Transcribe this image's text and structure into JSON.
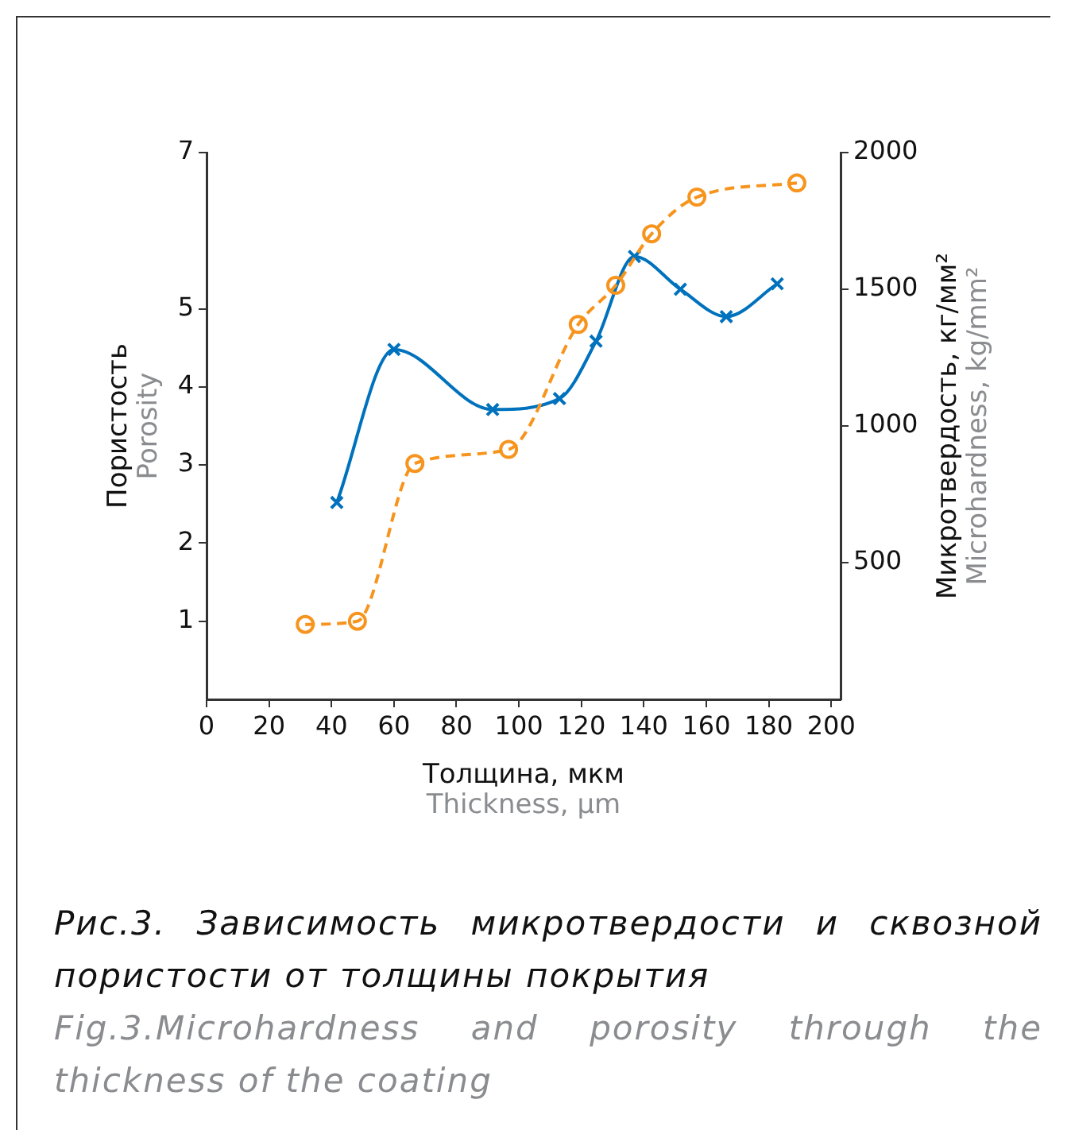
{
  "chart_data": {
    "type": "line",
    "xlabel": "Толщина, мкм\nThickness, µm",
    "ylabel": "Пористость\nPorosity",
    "y2label": "Микротвердость, кг/мм²\nMicrohardness, kg/mm²",
    "xlim": [
      0,
      203
    ],
    "xticks": [
      0,
      20,
      40,
      60,
      80,
      100,
      120,
      140,
      160,
      180,
      200
    ],
    "ylim": [
      0,
      7
    ],
    "yticks": [
      1,
      2,
      3,
      4,
      5,
      7
    ],
    "y2lim": [
      0,
      2000
    ],
    "y2ticks": [
      500,
      1000,
      1500,
      2000
    ],
    "grid": false,
    "legend": false,
    "series": [
      {
        "type": "line",
        "color": "#f7941d",
        "marker": "circle",
        "line_style": "dashed",
        "x": [
          31.6,
          48.3,
          66.7,
          96.7,
          119,
          131,
          142.5,
          157,
          189
        ],
        "values": [
          0.96,
          1.0,
          3.02,
          3.2,
          4.8,
          5.3,
          5.96,
          6.43,
          6.61
        ]
      },
      {
        "type": "line",
        "axis": "y2",
        "color": "#0072bd",
        "marker": "cross",
        "line_style": "solid",
        "x": [
          41.7,
          60,
          91.6,
          113,
          124.7,
          137,
          151.7,
          166.4,
          182.7
        ],
        "values": [
          720,
          1280,
          1060,
          1100,
          1310,
          1620,
          1500,
          1400,
          1520
        ]
      }
    ],
    "annotations": [
      "Рис.3. Зависимость микротвердости и сквозной пористости от толщины покрытия",
      "Fig.3.Microhardness and porosity through the thickness of the coating"
    ]
  }
}
